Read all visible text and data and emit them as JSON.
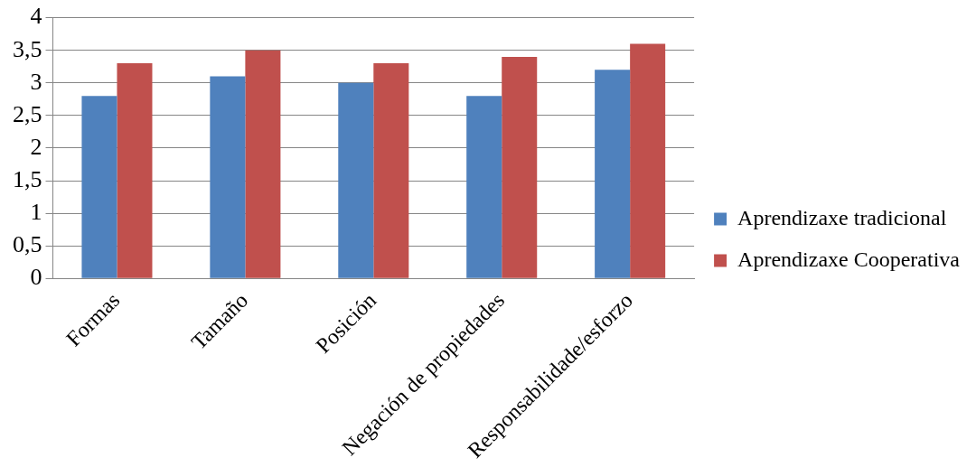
{
  "chart_data": {
    "type": "bar",
    "categories": [
      "Formas",
      "Tamaño",
      "Posición",
      "Negación de propiedades",
      "Responsabilidade/esforzo"
    ],
    "series": [
      {
        "name": "Aprendizaxe tradicional",
        "color": "#4f81bd",
        "values": [
          2.8,
          3.1,
          3.0,
          2.8,
          3.2
        ]
      },
      {
        "name": "Aprendizaxe Cooperativa",
        "color": "#c0504d",
        "values": [
          3.3,
          3.5,
          3.3,
          3.4,
          3.6
        ]
      }
    ],
    "ylim": [
      0,
      4
    ],
    "yticks": [
      0,
      {
        "value": 0.5,
        "label": "0,5"
      },
      1,
      {
        "value": 1.5,
        "label": "1,5"
      },
      2,
      {
        "value": 2.5,
        "label": "2,5"
      },
      3,
      {
        "value": 3.5,
        "label": "3,5"
      },
      4
    ],
    "grid": "y",
    "legend": "right"
  }
}
